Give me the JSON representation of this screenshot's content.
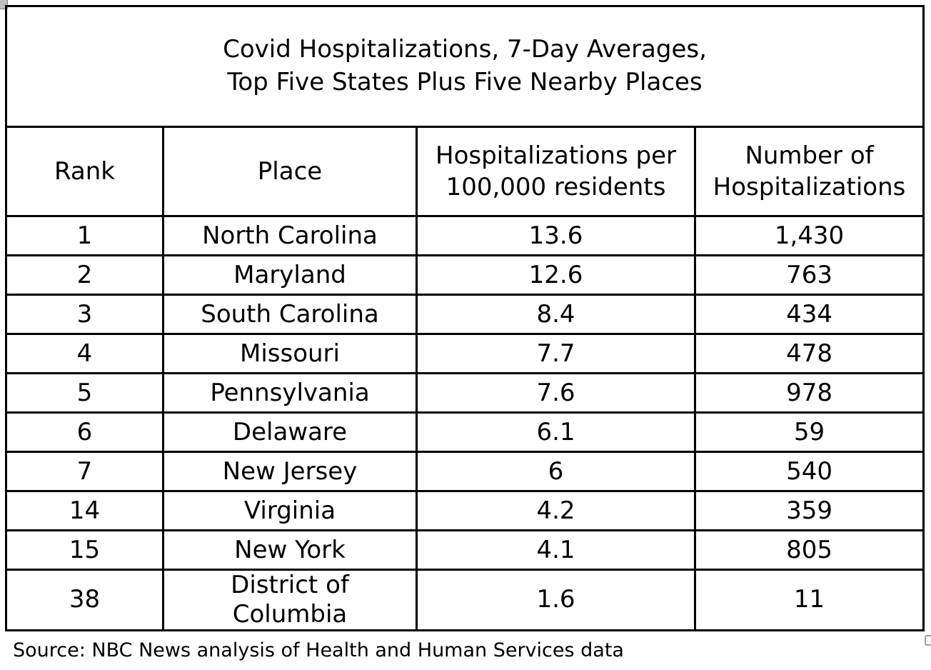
{
  "colors": {
    "background": "#ffffff",
    "text": "#000000",
    "table_border": "#000000",
    "handle_fill": "#bfbfbf",
    "handle_border": "#7f7f7f"
  },
  "title": {
    "line1": "Covid Hospitalizations, 7-Day Averages,",
    "line2": "Top Five States Plus Five Nearby Places"
  },
  "table": {
    "headers": [
      "Rank",
      "Place",
      "Hospitalizations per 100,000 residents",
      "Number of Hospitalizations"
    ],
    "rows": [
      {
        "rank": "1",
        "place": "North Carolina",
        "per_100k": "13.6",
        "number": "1,430"
      },
      {
        "rank": "2",
        "place": "Maryland",
        "per_100k": "12.6",
        "number": "763"
      },
      {
        "rank": "3",
        "place": "South Carolina",
        "per_100k": "8.4",
        "number": "434"
      },
      {
        "rank": "4",
        "place": "Missouri",
        "per_100k": "7.7",
        "number": "478"
      },
      {
        "rank": "5",
        "place": "Pennsylvania",
        "per_100k": "7.6",
        "number": "978"
      },
      {
        "rank": "6",
        "place": "Delaware",
        "per_100k": "6.1",
        "number": "59"
      },
      {
        "rank": "7",
        "place": "New Jersey",
        "per_100k": "6",
        "number": "540"
      },
      {
        "rank": "14",
        "place": "Virginia",
        "per_100k": "4.2",
        "number": "359"
      },
      {
        "rank": "15",
        "place": "New York",
        "per_100k": "4.1",
        "number": "805"
      },
      {
        "rank": "38",
        "place": "District of Columbia",
        "per_100k": "1.6",
        "number": "11"
      }
    ]
  },
  "source": "Source: NBC News analysis of Health and Human Services data",
  "chart_data": {
    "type": "table",
    "title": "Covid Hospitalizations, 7-Day Averages, Top Five States Plus Five Nearby Places",
    "columns": [
      "Rank",
      "Place",
      "Hospitalizations per 100,000 residents",
      "Number of Hospitalizations"
    ],
    "rows": [
      [
        1,
        "North Carolina",
        13.6,
        1430
      ],
      [
        2,
        "Maryland",
        12.6,
        763
      ],
      [
        3,
        "South Carolina",
        8.4,
        434
      ],
      [
        4,
        "Missouri",
        7.7,
        478
      ],
      [
        5,
        "Pennsylvania",
        7.6,
        978
      ],
      [
        6,
        "Delaware",
        6.1,
        59
      ],
      [
        7,
        "New Jersey",
        6,
        540
      ],
      [
        14,
        "Virginia",
        4.2,
        359
      ],
      [
        15,
        "New York",
        4.1,
        805
      ],
      [
        38,
        "District of Columbia",
        1.6,
        11
      ]
    ],
    "source": "Source: NBC News analysis of Health and Human Services data"
  }
}
